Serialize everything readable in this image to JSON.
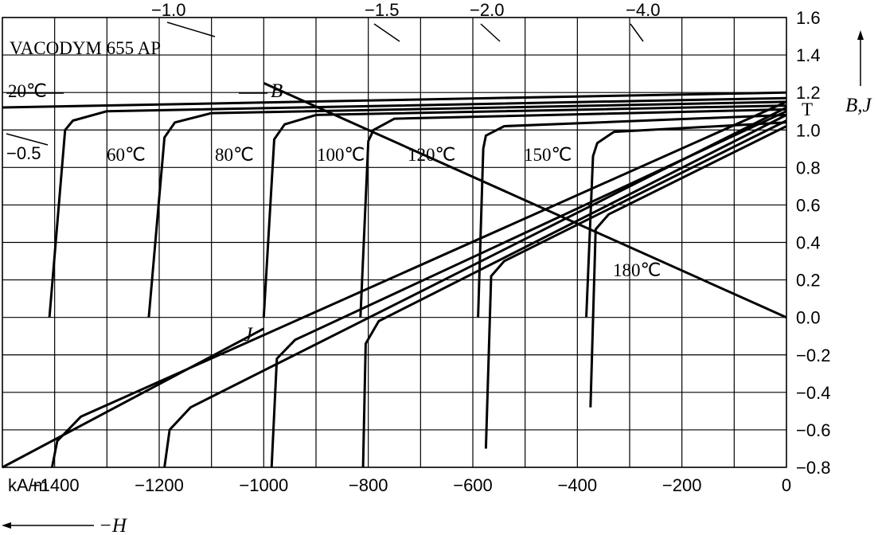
{
  "chart_data": {
    "type": "line",
    "title": "VACODYM 655 AP",
    "x_axis": {
      "unit": "kA/m",
      "label": "−H",
      "range": [
        -1500,
        0
      ],
      "ticks": [
        "−1400",
        "−1200",
        "−1000",
        "−800",
        "−600",
        "−400",
        "−200",
        "0"
      ],
      "tick_values": [
        -1400,
        -1200,
        -1000,
        -800,
        -600,
        -400,
        -200,
        0
      ],
      "grid_step": 100
    },
    "y_axis": {
      "unit": "T",
      "label": "B,J",
      "range": [
        -0.8,
        1.6
      ],
      "ticks": [
        "1.6",
        "1.4",
        "1.2",
        "1.0",
        "0.8",
        "0.6",
        "0.4",
        "0.2",
        "0.0",
        "−0.2",
        "−0.4",
        "−0.6",
        "−0.8"
      ],
      "tick_values": [
        1.6,
        1.4,
        1.2,
        1.0,
        0.8,
        0.6,
        0.4,
        0.2,
        0.0,
        -0.2,
        -0.4,
        -0.6,
        -0.8
      ]
    },
    "grid": true,
    "permeance_lines": [
      {
        "label": "−0.5",
        "slope": -0.5
      },
      {
        "label": "−1.0",
        "slope": -1.0
      },
      {
        "label": "−1.5",
        "slope": -1.5
      },
      {
        "label": "−2.0",
        "slope": -2.0
      },
      {
        "label": "−4.0",
        "slope": -4.0
      }
    ],
    "annotations": {
      "b_curve": "B",
      "j_curve": "J"
    },
    "series": [
      {
        "name": "20℃",
        "curve": "J",
        "points": [
          [
            0,
            1.2
          ],
          [
            -1500,
            1.12
          ]
        ]
      },
      {
        "name": "20℃",
        "curve": "B",
        "points": [
          [
            -1000,
            -0.06
          ],
          [
            -1500,
            -0.8
          ]
        ]
      },
      {
        "name": "60℃",
        "curve": "J",
        "points": [
          [
            0,
            1.17
          ],
          [
            -1300,
            1.1
          ],
          [
            -1365,
            1.05
          ],
          [
            -1380,
            1.0
          ],
          [
            -1410,
            0.0
          ]
        ]
      },
      {
        "name": "60℃",
        "curve": "B",
        "points": [
          [
            0,
            1.15
          ],
          [
            -1350,
            -0.53
          ],
          [
            -1395,
            -0.66
          ],
          [
            -1405,
            -0.8
          ]
        ]
      },
      {
        "name": "80℃",
        "curve": "J",
        "points": [
          [
            0,
            1.15
          ],
          [
            -1100,
            1.09
          ],
          [
            -1170,
            1.04
          ],
          [
            -1190,
            0.96
          ],
          [
            -1220,
            0.0
          ]
        ]
      },
      {
        "name": "80℃",
        "curve": "B",
        "points": [
          [
            0,
            1.12
          ],
          [
            -1140,
            -0.48
          ],
          [
            -1180,
            -0.6
          ],
          [
            -1190,
            -0.8
          ]
        ]
      },
      {
        "name": "100℃",
        "curve": "J",
        "points": [
          [
            0,
            1.13
          ],
          [
            -900,
            1.08
          ],
          [
            -960,
            1.03
          ],
          [
            -980,
            0.95
          ],
          [
            -1000,
            0.0
          ]
        ]
      },
      {
        "name": "100℃",
        "curve": "B",
        "points": [
          [
            0,
            1.1
          ],
          [
            -940,
            -0.12
          ],
          [
            -975,
            -0.22
          ],
          [
            -985,
            -0.8
          ]
        ]
      },
      {
        "name": "120℃",
        "curve": "J",
        "points": [
          [
            0,
            1.11
          ],
          [
            -750,
            1.06
          ],
          [
            -790,
            1.0
          ],
          [
            -800,
            0.94
          ],
          [
            -815,
            0.0
          ]
        ]
      },
      {
        "name": "120℃",
        "curve": "B",
        "points": [
          [
            0,
            1.08
          ],
          [
            -780,
            -0.02
          ],
          [
            -805,
            -0.14
          ],
          [
            -810,
            -0.8
          ]
        ]
      },
      {
        "name": "150℃",
        "curve": "J",
        "points": [
          [
            0,
            1.08
          ],
          [
            -540,
            1.02
          ],
          [
            -575,
            0.97
          ],
          [
            -580,
            0.9
          ],
          [
            -590,
            0.0
          ]
        ]
      },
      {
        "name": "150℃",
        "curve": "B",
        "points": [
          [
            0,
            1.05
          ],
          [
            -540,
            0.3
          ],
          [
            -565,
            0.22
          ],
          [
            -575,
            -0.7
          ]
        ]
      },
      {
        "name": "180℃",
        "curve": "J",
        "points": [
          [
            0,
            1.04
          ],
          [
            -330,
            0.99
          ],
          [
            -362,
            0.93
          ],
          [
            -370,
            0.86
          ],
          [
            -383,
            0.0
          ]
        ]
      },
      {
        "name": "180℃",
        "curve": "B",
        "points": [
          [
            0,
            1.02
          ],
          [
            -340,
            0.55
          ],
          [
            -365,
            0.47
          ],
          [
            -375,
            -0.48
          ]
        ]
      },
      {
        "name": "",
        "curve": "B",
        "points": [
          [
            0,
            0.0
          ],
          [
            -1000,
            1.25
          ]
        ]
      }
    ],
    "labels": [
      "20℃",
      "60℃",
      "80℃",
      "100℃",
      "120℃",
      "150℃",
      "180℃"
    ]
  }
}
